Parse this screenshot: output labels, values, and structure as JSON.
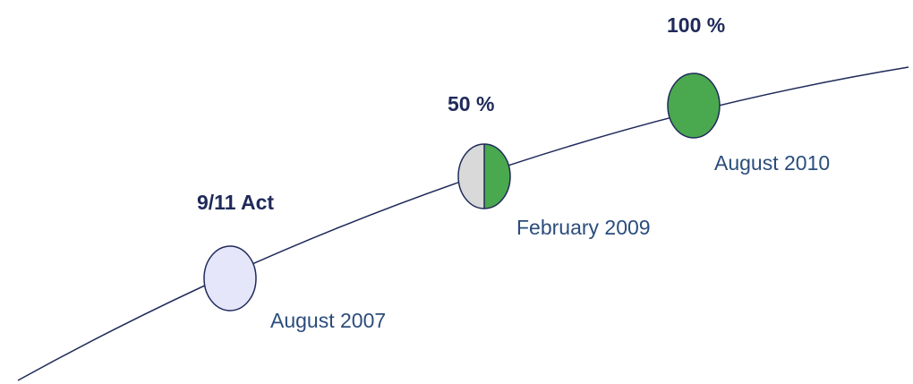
{
  "milestones": [
    {
      "label": "9/11 Act",
      "date": "August 2007"
    },
    {
      "label": "50 %",
      "date": "February 2009"
    },
    {
      "label": "100 %",
      "date": "August 2010"
    }
  ]
}
